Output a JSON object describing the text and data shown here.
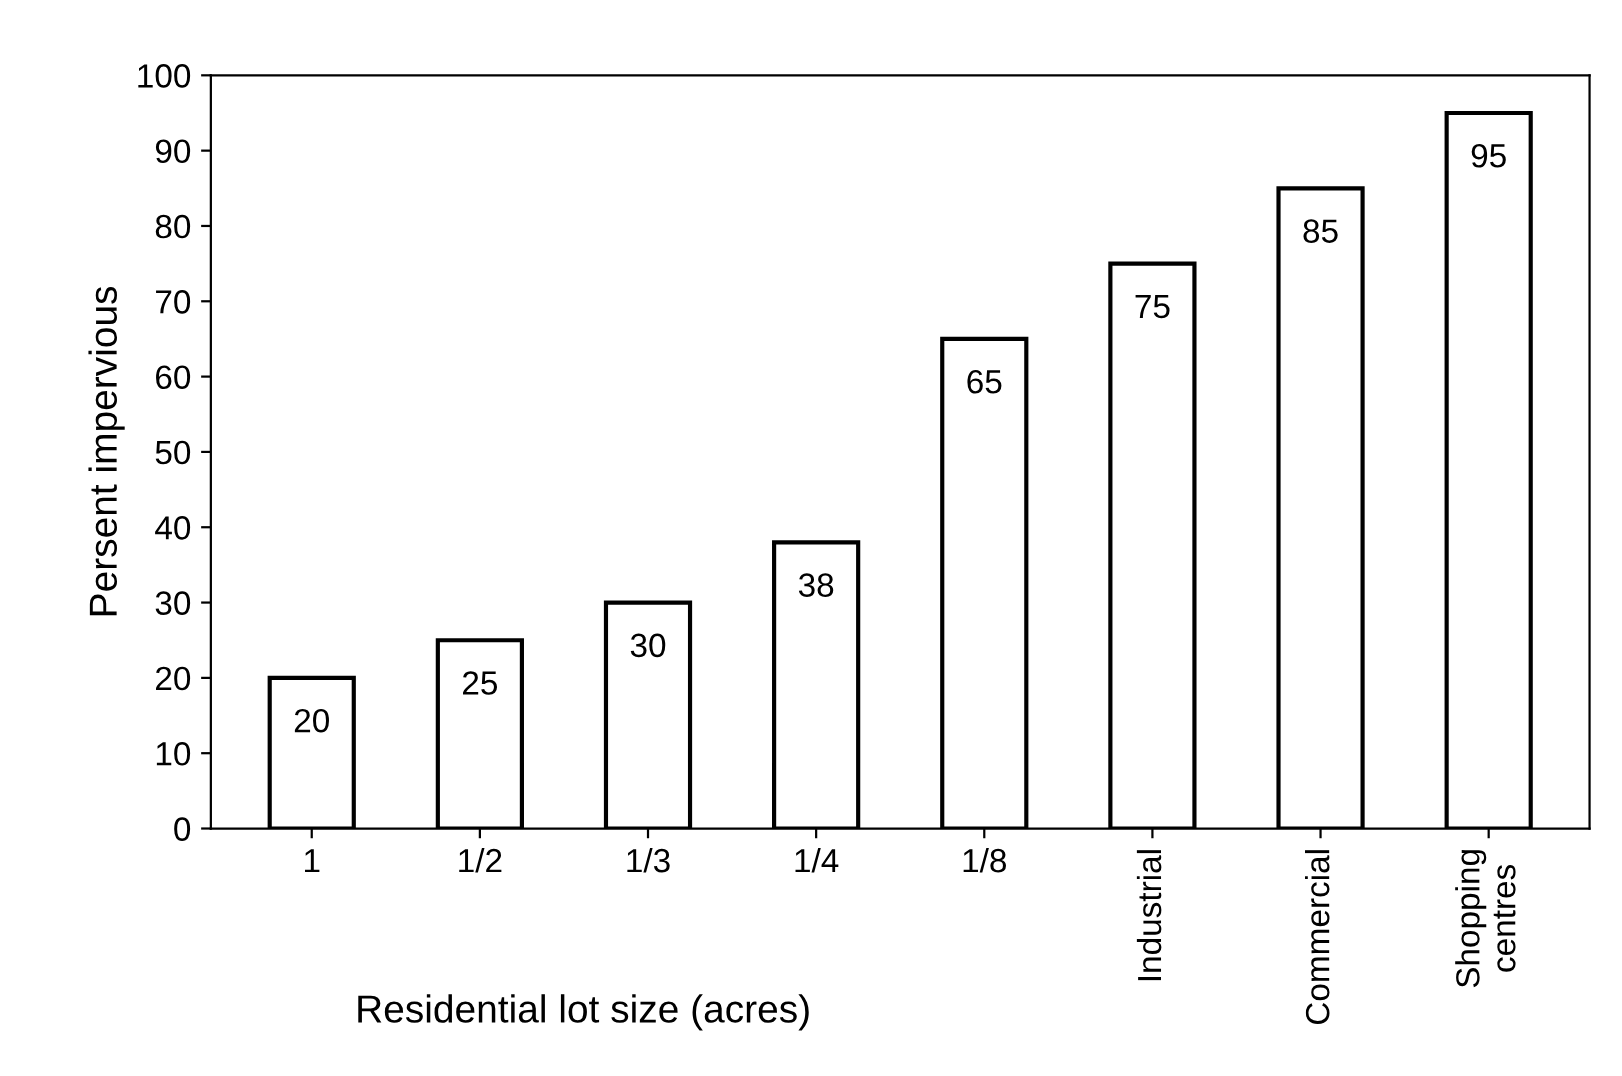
{
  "chart_data": {
    "type": "bar",
    "xlabel": "Residential lot size (acres)",
    "ylabel": "Persent impervious",
    "categories": [
      "1",
      "1/2",
      "1/3",
      "1/4",
      "1/8",
      "Industrial",
      "Commercial",
      "Shopping\ncentres"
    ],
    "values": [
      20,
      25,
      30,
      38,
      65,
      75,
      85,
      95
    ],
    "color": "#ffffff",
    "ylim": [
      0,
      100
    ],
    "yticks": [
      0,
      10,
      20,
      30,
      40,
      50,
      60,
      70,
      80,
      90,
      100
    ],
    "grid": false,
    "data_labels": true
  }
}
